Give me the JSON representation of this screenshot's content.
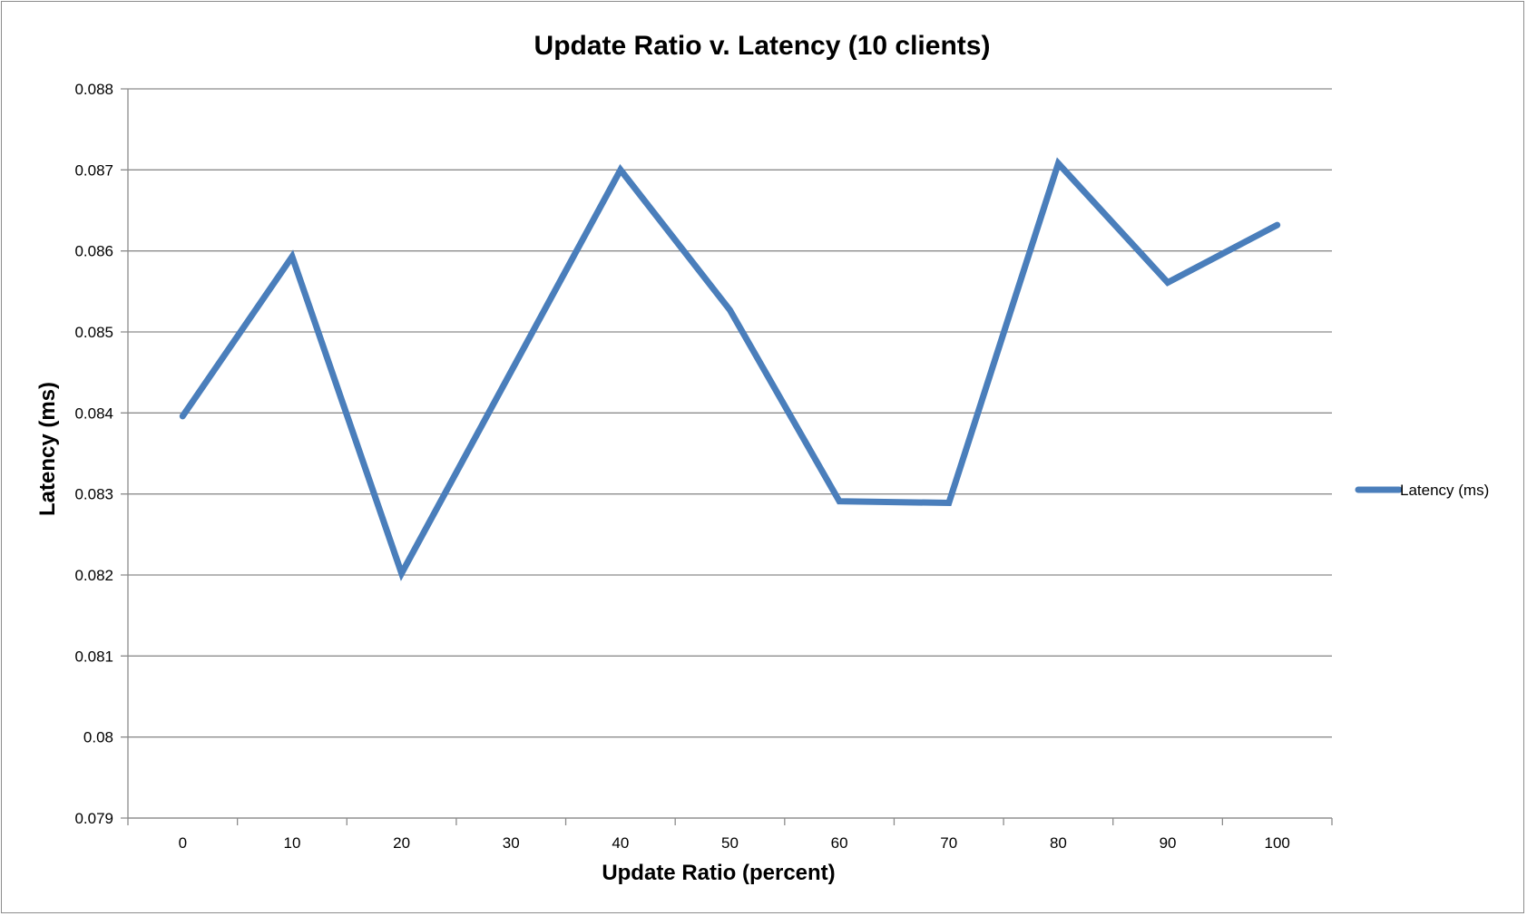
{
  "chart_data": {
    "type": "line",
    "title": "Update Ratio v. Latency  (10 clients)",
    "xlabel": "Update Ratio (percent)",
    "ylabel": "Latency (ms)",
    "categories": [
      "0",
      "10",
      "20",
      "30",
      "40",
      "50",
      "60",
      "70",
      "80",
      "90",
      "100"
    ],
    "series": [
      {
        "name": "Latency (ms)",
        "color": "#4a7ebb",
        "values": [
          0.08396,
          0.08593,
          0.08202,
          null,
          0.087,
          0.08527,
          0.08291,
          0.08289,
          0.08708,
          0.08561,
          0.08632
        ]
      }
    ],
    "ylim": [
      0.079,
      0.088
    ],
    "yticks": [
      "0.079",
      "0.08",
      "0.081",
      "0.082",
      "0.083",
      "0.084",
      "0.085",
      "0.086",
      "0.087",
      "0.088"
    ],
    "grid": true,
    "legend": "right"
  }
}
